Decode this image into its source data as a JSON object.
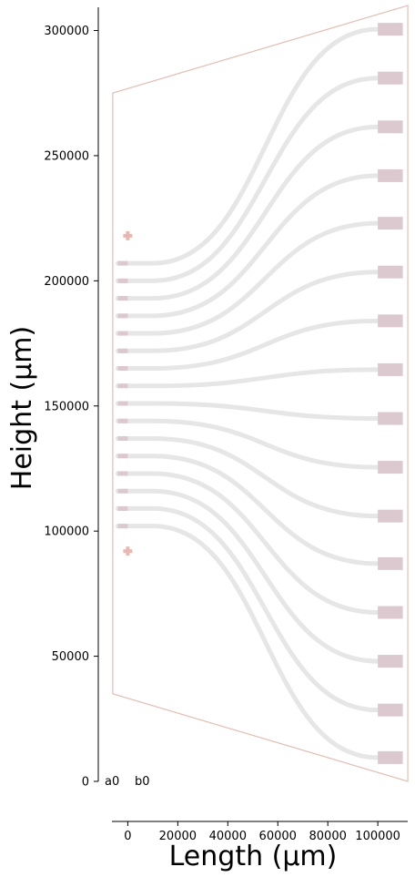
{
  "chart_data": {
    "type": "line",
    "xlabel": "Length (µm)",
    "ylabel": "Height (µm)",
    "xlim": [
      -6500,
      112000
    ],
    "ylim": [
      -2000,
      310000
    ],
    "x_ticks": [
      0,
      20000,
      40000,
      60000,
      80000,
      100000
    ],
    "y_ticks": [
      0,
      50000,
      100000,
      150000,
      200000,
      250000,
      300000
    ],
    "corner_labels": [
      "a0",
      "b0"
    ],
    "colors": {
      "waveguide": "#e6e6e6",
      "port": "#dcc8cf",
      "outline": "#e2bdb5",
      "marker": "#e8b7b0"
    },
    "outline_polygon": [
      [
        -6000,
        35000
      ],
      [
        -6000,
        275000
      ],
      [
        112000,
        310000
      ],
      [
        112000,
        0
      ]
    ],
    "markers": [
      {
        "x": 0,
        "y": 218000
      },
      {
        "x": 0,
        "y": 92000
      }
    ],
    "waveguides": {
      "x_start": -4000,
      "x_bend_start": 10000,
      "x_bend_end": 100000,
      "x_end": 105000,
      "start_y": [
        207000,
        200000,
        193000,
        186000,
        179000,
        172000,
        165000,
        158000,
        151000,
        144000,
        137000,
        130000,
        123000,
        116000,
        109000,
        102000
      ],
      "end_y": [
        300500,
        281000,
        261500,
        242000,
        223000,
        203500,
        184000,
        164500,
        145000,
        125500,
        106000,
        87000,
        67500,
        48000,
        28500,
        9500
      ]
    },
    "input_ports": {
      "x_from": -4000,
      "x_to": 0,
      "y": [
        207000,
        200000,
        193000,
        186000,
        179000,
        172000,
        165000,
        158000,
        151000,
        144000,
        137000,
        130000,
        123000,
        116000,
        109000,
        102000
      ]
    },
    "output_ports": {
      "x_from": 100000,
      "x_to": 110000,
      "y": [
        300500,
        281000,
        261500,
        242000,
        223000,
        203500,
        184000,
        164500,
        145000,
        125500,
        106000,
        87000,
        67500,
        48000,
        28500,
        9500
      ]
    }
  }
}
